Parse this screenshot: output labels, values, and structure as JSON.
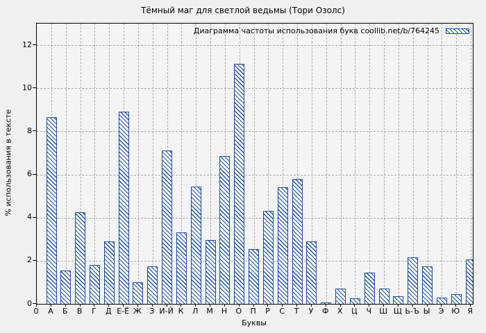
{
  "chart_data": {
    "type": "bar",
    "title": "Тёмный маг для светлой ведьмы (Тори Озолс)",
    "legend": "Диаграмма частоты использования букв coollib.net/b/764245",
    "legend_position": "top-right-inside",
    "xlabel": "Буквы",
    "ylabel": "% использования в тексте",
    "origin_label": "0",
    "categories": [
      "А",
      "Б",
      "В",
      "Г",
      "Д",
      "Е-Ё",
      "Ж",
      "З",
      "И-Й",
      "К",
      "Л",
      "М",
      "Н",
      "О",
      "П",
      "Р",
      "С",
      "Т",
      "У",
      "Ф",
      "Х",
      "Ц",
      "Ч",
      "Ш",
      "Щ",
      "Ь-Ъ",
      "Ы",
      "Э",
      "Ю",
      "Я"
    ],
    "values": [
      8.65,
      1.55,
      4.25,
      1.8,
      2.9,
      8.9,
      1.0,
      1.75,
      7.1,
      3.3,
      5.45,
      2.95,
      6.85,
      11.15,
      2.55,
      4.3,
      5.4,
      5.8,
      2.9,
      0.05,
      0.7,
      0.25,
      1.45,
      0.7,
      0.35,
      2.15,
      1.75,
      0.3,
      0.45,
      2.05
    ],
    "ylim": [
      0,
      13
    ],
    "yticks": [
      0,
      2,
      4,
      6,
      8,
      10,
      12
    ],
    "grid": true,
    "hatch": "diagonal-backslash",
    "colors": {
      "bar": "#1a4c9f",
      "bar_fill": "#ffffff",
      "grid": "#ababab",
      "plot_background": "#f4f4f4",
      "figure_background": "#f0f0f0",
      "border": "#000000",
      "text": "#000000"
    }
  }
}
